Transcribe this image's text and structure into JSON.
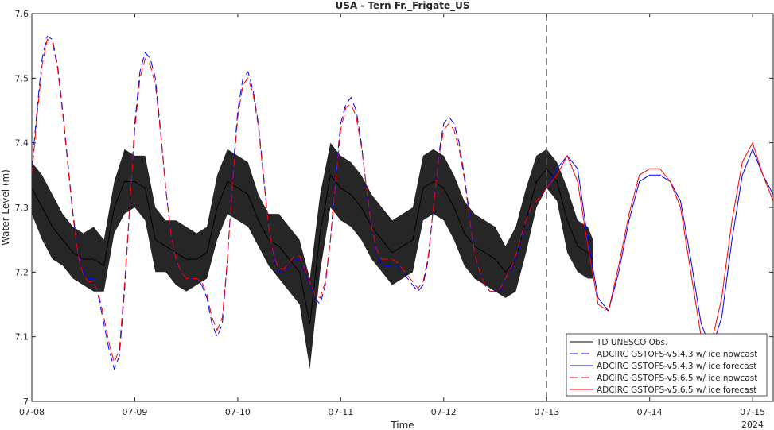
{
  "chart_data": {
    "type": "line",
    "title": "USA - Tern Fr._Frigate_US",
    "xlabel": "Time",
    "ylabel": "Water Level (m)",
    "year_label": "2024",
    "xlim": [
      0,
      7.2
    ],
    "ylim": [
      7.0,
      7.6
    ],
    "x_ticks": [
      0,
      1,
      2,
      3,
      4,
      5,
      6,
      7
    ],
    "x_tick_labels": [
      "07-08",
      "07-09",
      "07-10",
      "07-11",
      "07-12",
      "07-13",
      "07-14",
      "07-15"
    ],
    "y_ticks": [
      7.0,
      7.1,
      7.2,
      7.3,
      7.4,
      7.5,
      7.6
    ],
    "y_tick_labels": [
      "7",
      "7.1",
      "7.2",
      "7.3",
      "7.4",
      "7.5",
      "7.6"
    ],
    "nowcast_forecast_divider_x": 5.0,
    "legend_position": "bottom-right",
    "series": [
      {
        "name": "TD UNESCO Obs.",
        "color": "#000000",
        "dash": "solid",
        "x": [
          0.0,
          0.1,
          0.2,
          0.3,
          0.4,
          0.5,
          0.6,
          0.7,
          0.8,
          0.9,
          1.0,
          1.1,
          1.2,
          1.3,
          1.4,
          1.5,
          1.6,
          1.7,
          1.8,
          1.9,
          2.0,
          2.1,
          2.2,
          2.3,
          2.4,
          2.5,
          2.6,
          2.7,
          2.8,
          2.9,
          3.0,
          3.1,
          3.2,
          3.3,
          3.4,
          3.5,
          3.6,
          3.7,
          3.8,
          3.9,
          4.0,
          4.1,
          4.2,
          4.3,
          4.4,
          4.5,
          4.6,
          4.7,
          4.8,
          4.9,
          5.0,
          5.1,
          5.2,
          5.3,
          5.4,
          5.45
        ],
        "y": [
          7.33,
          7.3,
          7.27,
          7.25,
          7.23,
          7.22,
          7.22,
          7.21,
          7.3,
          7.34,
          7.34,
          7.33,
          7.25,
          7.24,
          7.23,
          7.22,
          7.22,
          7.23,
          7.3,
          7.34,
          7.33,
          7.32,
          7.28,
          7.25,
          7.24,
          7.22,
          7.2,
          7.12,
          7.26,
          7.35,
          7.33,
          7.32,
          7.3,
          7.27,
          7.25,
          7.23,
          7.24,
          7.25,
          7.33,
          7.34,
          7.33,
          7.3,
          7.26,
          7.24,
          7.23,
          7.22,
          7.2,
          7.22,
          7.28,
          7.34,
          7.36,
          7.34,
          7.28,
          7.24,
          7.23,
          7.22
        ],
        "band_halfwidth": [
          0.04,
          0.05,
          0.05,
          0.04,
          0.04,
          0.04,
          0.05,
          0.04,
          0.04,
          0.05,
          0.04,
          0.05,
          0.05,
          0.04,
          0.05,
          0.05,
          0.04,
          0.04,
          0.05,
          0.05,
          0.05,
          0.05,
          0.04,
          0.04,
          0.05,
          0.05,
          0.05,
          0.07,
          0.06,
          0.05,
          0.05,
          0.05,
          0.05,
          0.05,
          0.05,
          0.05,
          0.05,
          0.05,
          0.05,
          0.05,
          0.05,
          0.05,
          0.05,
          0.05,
          0.05,
          0.05,
          0.04,
          0.05,
          0.05,
          0.04,
          0.03,
          0.03,
          0.05,
          0.04,
          0.04,
          0.03
        ]
      },
      {
        "name": "ADCIRC GSTOFS-v5.4.3 w/ ice nowcast",
        "color": "#0000ff",
        "dash": "long-dash",
        "x": [
          0.0,
          0.05,
          0.1,
          0.15,
          0.2,
          0.25,
          0.3,
          0.35,
          0.4,
          0.45,
          0.5,
          0.55,
          0.6,
          0.65,
          0.7,
          0.75,
          0.8,
          0.85,
          0.9,
          0.95,
          1.0,
          1.05,
          1.1,
          1.15,
          1.2,
          1.25,
          1.3,
          1.35,
          1.4,
          1.45,
          1.5,
          1.55,
          1.6,
          1.65,
          1.7,
          1.75,
          1.8,
          1.85,
          1.9,
          1.95,
          2.0,
          2.05,
          2.1,
          2.15,
          2.2,
          2.25,
          2.3,
          2.35,
          2.4,
          2.45,
          2.5,
          2.55,
          2.6,
          2.65,
          2.7,
          2.75,
          2.8,
          2.85,
          2.9,
          2.95,
          3.0,
          3.05,
          3.1,
          3.15,
          3.2,
          3.25,
          3.3,
          3.35,
          3.4,
          3.45,
          3.5,
          3.55,
          3.6,
          3.65,
          3.7,
          3.75,
          3.8,
          3.85,
          3.9,
          3.95,
          4.0,
          4.05,
          4.1,
          4.15,
          4.2,
          4.25,
          4.3,
          4.35,
          4.4,
          4.45,
          4.5,
          4.55,
          4.6,
          4.65,
          4.7,
          4.75,
          4.8,
          4.85,
          4.9,
          4.95,
          5.0
        ],
        "y": [
          7.36,
          7.45,
          7.53,
          7.565,
          7.56,
          7.52,
          7.45,
          7.37,
          7.29,
          7.23,
          7.2,
          7.19,
          7.19,
          7.16,
          7.12,
          7.08,
          7.05,
          7.07,
          7.17,
          7.3,
          7.43,
          7.51,
          7.54,
          7.53,
          7.5,
          7.42,
          7.33,
          7.26,
          7.22,
          7.2,
          7.19,
          7.19,
          7.19,
          7.18,
          7.16,
          7.12,
          7.1,
          7.12,
          7.22,
          7.35,
          7.45,
          7.5,
          7.51,
          7.48,
          7.43,
          7.35,
          7.27,
          7.22,
          7.2,
          7.2,
          7.21,
          7.22,
          7.22,
          7.2,
          7.18,
          7.16,
          7.15,
          7.18,
          7.25,
          7.35,
          7.43,
          7.46,
          7.47,
          7.45,
          7.4,
          7.33,
          7.27,
          7.23,
          7.21,
          7.21,
          7.21,
          7.21,
          7.2,
          7.19,
          7.18,
          7.17,
          7.18,
          7.22,
          7.3,
          7.38,
          7.43,
          7.44,
          7.43,
          7.4,
          7.35,
          7.29,
          7.23,
          7.2,
          7.18,
          7.17,
          7.17,
          7.17,
          7.19,
          7.2,
          7.22,
          7.25,
          7.28,
          7.3,
          7.31,
          7.32,
          7.33
        ]
      },
      {
        "name": "ADCIRC GSTOFS-v5.4.3 w/ ice forecast",
        "color": "#0000ff",
        "dash": "solid",
        "x": [
          5.0,
          5.1,
          5.2,
          5.3,
          5.4,
          5.5,
          5.6,
          5.7,
          5.8,
          5.9,
          6.0,
          6.1,
          6.2,
          6.3,
          6.4,
          6.5,
          6.6,
          6.7,
          6.8,
          6.9,
          7.0,
          7.1,
          7.2
        ],
        "y": [
          7.33,
          7.36,
          7.38,
          7.36,
          7.25,
          7.16,
          7.14,
          7.2,
          7.28,
          7.34,
          7.35,
          7.35,
          7.34,
          7.31,
          7.22,
          7.12,
          7.08,
          7.13,
          7.25,
          7.35,
          7.39,
          7.35,
          7.32
        ]
      },
      {
        "name": "ADCIRC GSTOFS-v5.6.5 w/ ice nowcast",
        "color": "#ff0000",
        "dash": "long-dash",
        "x": [
          0.0,
          0.05,
          0.1,
          0.15,
          0.2,
          0.25,
          0.3,
          0.35,
          0.4,
          0.45,
          0.5,
          0.55,
          0.6,
          0.65,
          0.7,
          0.75,
          0.8,
          0.85,
          0.9,
          0.95,
          1.0,
          1.05,
          1.1,
          1.15,
          1.2,
          1.25,
          1.3,
          1.35,
          1.4,
          1.45,
          1.5,
          1.55,
          1.6,
          1.65,
          1.7,
          1.75,
          1.8,
          1.85,
          1.9,
          1.95,
          2.0,
          2.05,
          2.1,
          2.15,
          2.2,
          2.25,
          2.3,
          2.35,
          2.4,
          2.45,
          2.5,
          2.55,
          2.6,
          2.65,
          2.7,
          2.75,
          2.8,
          2.85,
          2.9,
          2.95,
          3.0,
          3.05,
          3.1,
          3.15,
          3.2,
          3.25,
          3.3,
          3.35,
          3.4,
          3.45,
          3.5,
          3.55,
          3.6,
          3.65,
          3.7,
          3.75,
          3.8,
          3.85,
          3.9,
          3.95,
          4.0,
          4.05,
          4.1,
          4.15,
          4.2,
          4.25,
          4.3,
          4.35,
          4.4,
          4.45,
          4.5,
          4.55,
          4.6,
          4.65,
          4.7,
          4.75,
          4.8,
          4.85,
          4.9,
          4.95,
          5.0
        ],
        "y": [
          7.35,
          7.44,
          7.52,
          7.56,
          7.555,
          7.515,
          7.445,
          7.365,
          7.285,
          7.225,
          7.195,
          7.185,
          7.185,
          7.165,
          7.13,
          7.09,
          7.06,
          7.08,
          7.18,
          7.3,
          7.42,
          7.5,
          7.53,
          7.52,
          7.49,
          7.415,
          7.33,
          7.26,
          7.22,
          7.2,
          7.19,
          7.19,
          7.19,
          7.185,
          7.165,
          7.13,
          7.11,
          7.13,
          7.22,
          7.34,
          7.44,
          7.49,
          7.5,
          7.475,
          7.425,
          7.345,
          7.27,
          7.225,
          7.205,
          7.205,
          7.215,
          7.225,
          7.225,
          7.205,
          7.185,
          7.165,
          7.16,
          7.185,
          7.25,
          7.34,
          7.42,
          7.455,
          7.46,
          7.44,
          7.395,
          7.33,
          7.27,
          7.235,
          7.22,
          7.22,
          7.22,
          7.215,
          7.205,
          7.195,
          7.185,
          7.175,
          7.185,
          7.225,
          7.3,
          7.375,
          7.42,
          7.43,
          7.42,
          7.39,
          7.345,
          7.285,
          7.23,
          7.2,
          7.18,
          7.17,
          7.17,
          7.175,
          7.19,
          7.205,
          7.225,
          7.255,
          7.28,
          7.3,
          7.31,
          7.32,
          7.33
        ]
      },
      {
        "name": "ADCIRC GSTOFS-v5.6.5 w/ ice forecast",
        "color": "#ff0000",
        "dash": "solid",
        "x": [
          5.0,
          5.1,
          5.2,
          5.3,
          5.4,
          5.5,
          5.6,
          5.7,
          5.8,
          5.9,
          6.0,
          6.1,
          6.2,
          6.3,
          6.4,
          6.5,
          6.6,
          6.7,
          6.8,
          6.9,
          7.0,
          7.1,
          7.2
        ],
        "y": [
          7.33,
          7.35,
          7.38,
          7.34,
          7.24,
          7.15,
          7.14,
          7.21,
          7.29,
          7.35,
          7.36,
          7.36,
          7.34,
          7.3,
          7.2,
          7.1,
          7.09,
          7.16,
          7.28,
          7.37,
          7.4,
          7.35,
          7.31
        ]
      }
    ]
  }
}
